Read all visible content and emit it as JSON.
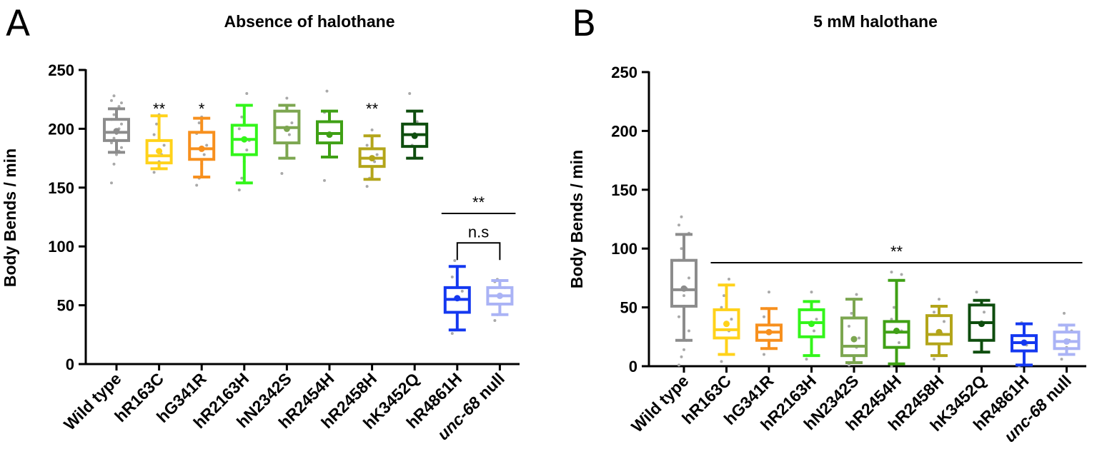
{
  "chart_data": [
    {
      "type": "box",
      "panel": "A",
      "title": "Absence of halothane",
      "xlabel": "",
      "ylabel": "Body Bends / min",
      "ylim": [
        0,
        250
      ],
      "yticks": [
        0,
        50,
        100,
        150,
        200,
        250
      ],
      "categories": [
        "Wild type",
        "hR163C",
        "hG341R",
        "hR2163H",
        "hN2342S",
        "hR2454H",
        "hR2458H",
        "hK3452Q",
        "hR4861H",
        "unc-68 null"
      ],
      "italic_prefix": [
        null,
        null,
        null,
        null,
        null,
        null,
        null,
        null,
        null,
        "unc-68"
      ],
      "colors": [
        "#8c8c8c",
        "#ffd21a",
        "#f7901e",
        "#33f51a",
        "#7ca650",
        "#3fa015",
        "#b3a51a",
        "#0e4d0e",
        "#1438f0",
        "#aab3f5"
      ],
      "boxes": [
        {
          "min": 180,
          "q1": 190,
          "median": 197,
          "q3": 208,
          "max": 217,
          "mean": 198
        },
        {
          "min": 166,
          "q1": 171,
          "median": 177,
          "q3": 190,
          "max": 211,
          "mean": 181
        },
        {
          "min": 159,
          "q1": 174,
          "median": 183,
          "q3": 197,
          "max": 209,
          "mean": 183
        },
        {
          "min": 154,
          "q1": 178,
          "median": 191,
          "q3": 203,
          "max": 220,
          "mean": 191
        },
        {
          "min": 175,
          "q1": 188,
          "median": 201,
          "q3": 215,
          "max": 220,
          "mean": 200
        },
        {
          "min": 176,
          "q1": 188,
          "median": 196,
          "q3": 206,
          "max": 215,
          "mean": 195
        },
        {
          "min": 157,
          "q1": 168,
          "median": 175,
          "q3": 183,
          "max": 194,
          "mean": 175
        },
        {
          "min": 175,
          "q1": 185,
          "median": 195,
          "q3": 204,
          "max": 215,
          "mean": 194
        },
        {
          "min": 29,
          "q1": 44,
          "median": 55,
          "q3": 65,
          "max": 83,
          "mean": 56
        },
        {
          "min": 42,
          "q1": 51,
          "median": 58,
          "q3": 65,
          "max": 71,
          "mean": 58
        }
      ],
      "points": [
        [
          154,
          170,
          178,
          181,
          184,
          188,
          192,
          196,
          200,
          204,
          208,
          212,
          216,
          219,
          222,
          224,
          228
        ],
        [
          163,
          166,
          172,
          178,
          186,
          195,
          204,
          212
        ],
        [
          152,
          158,
          170,
          178,
          186,
          196,
          205,
          210
        ],
        [
          148,
          158,
          172,
          182,
          190,
          200,
          210,
          220,
          230
        ],
        [
          162,
          175,
          185,
          195,
          205,
          215,
          220,
          226
        ],
        [
          156,
          176,
          186,
          196,
          206,
          214,
          232
        ],
        [
          151,
          158,
          166,
          172,
          178,
          186,
          194,
          199
        ],
        [
          175,
          186,
          196,
          206,
          215,
          230
        ],
        [
          26,
          29,
          44,
          55,
          62,
          74,
          88
        ],
        [
          37,
          42,
          50,
          58,
          65,
          70,
          72
        ]
      ],
      "annotations": [
        {
          "text": "**",
          "category": "hR163C",
          "y": 222
        },
        {
          "text": "*",
          "category": "hG341R",
          "y": 222
        },
        {
          "text": "**",
          "category": "hR2458H",
          "y": 222
        },
        {
          "text": "**",
          "from": "hR4861H",
          "to": "unc-68 null",
          "y": 128,
          "type": "line"
        },
        {
          "text": "n.s",
          "from": "hR4861H",
          "to": "unc-68 null",
          "y": 103,
          "type": "bracket"
        }
      ]
    },
    {
      "type": "box",
      "panel": "B",
      "title": "5 mM halothane",
      "xlabel": "",
      "ylabel": "Body Bends / min",
      "ylim": [
        0,
        250
      ],
      "yticks": [
        0,
        50,
        100,
        150,
        200,
        250
      ],
      "categories": [
        "Wild type",
        "hR163C",
        "hG341R",
        "hR2163H",
        "hN2342S",
        "hR2454H",
        "hR2458H",
        "hK3452Q",
        "hR4861H",
        "unc-68 null"
      ],
      "italic_prefix": [
        null,
        null,
        null,
        null,
        null,
        null,
        null,
        null,
        null,
        "unc-68"
      ],
      "colors": [
        "#8c8c8c",
        "#ffd21a",
        "#f7901e",
        "#33f51a",
        "#7ca650",
        "#3fa015",
        "#b3a51a",
        "#0e4d0e",
        "#1438f0",
        "#aab3f5"
      ],
      "boxes": [
        {
          "min": 22,
          "q1": 51,
          "median": 65,
          "q3": 90,
          "max": 112,
          "mean": 66
        },
        {
          "min": 10,
          "q1": 24,
          "median": 31,
          "q3": 48,
          "max": 69,
          "mean": 36
        },
        {
          "min": 15,
          "q1": 22,
          "median": 29,
          "q3": 35,
          "max": 49,
          "mean": 29
        },
        {
          "min": 9,
          "q1": 25,
          "median": 37,
          "q3": 48,
          "max": 55,
          "mean": 36
        },
        {
          "min": 3,
          "q1": 9,
          "median": 17,
          "q3": 41,
          "max": 57,
          "mean": 23
        },
        {
          "min": 2,
          "q1": 16,
          "median": 29,
          "q3": 38,
          "max": 73,
          "mean": 30
        },
        {
          "min": 9,
          "q1": 19,
          "median": 27,
          "q3": 43,
          "max": 51,
          "mean": 29
        },
        {
          "min": 12,
          "q1": 22,
          "median": 37,
          "q3": 52,
          "max": 56,
          "mean": 36
        },
        {
          "min": 1,
          "q1": 13,
          "median": 20,
          "q3": 26,
          "max": 36,
          "mean": 20
        },
        {
          "min": 10,
          "q1": 15,
          "median": 21,
          "q3": 29,
          "max": 35,
          "mean": 21
        }
      ],
      "points": [
        [
          1,
          8,
          14,
          22,
          30,
          42,
          51,
          60,
          66,
          75,
          90,
          100,
          110,
          112,
          113,
          120,
          127
        ],
        [
          4,
          10,
          20,
          30,
          40,
          50,
          60,
          69,
          74
        ],
        [
          10,
          15,
          22,
          29,
          35,
          42,
          49,
          63
        ],
        [
          6,
          9,
          20,
          30,
          40,
          48,
          55,
          63
        ],
        [
          1,
          3,
          8,
          16,
          24,
          34,
          45,
          57,
          61
        ],
        [
          0,
          2,
          10,
          20,
          30,
          40,
          50,
          62,
          73,
          78,
          80
        ],
        [
          6,
          9,
          18,
          28,
          38,
          46,
          51,
          57
        ],
        [
          12,
          22,
          36,
          46,
          56,
          63
        ],
        [
          0,
          1,
          10,
          18,
          26,
          36,
          37
        ],
        [
          6,
          10,
          16,
          22,
          30,
          35,
          45
        ]
      ],
      "annotations": [
        {
          "text": "**",
          "from": "hR163C",
          "to": "unc-68 null",
          "y": 88,
          "type": "line"
        }
      ]
    }
  ]
}
